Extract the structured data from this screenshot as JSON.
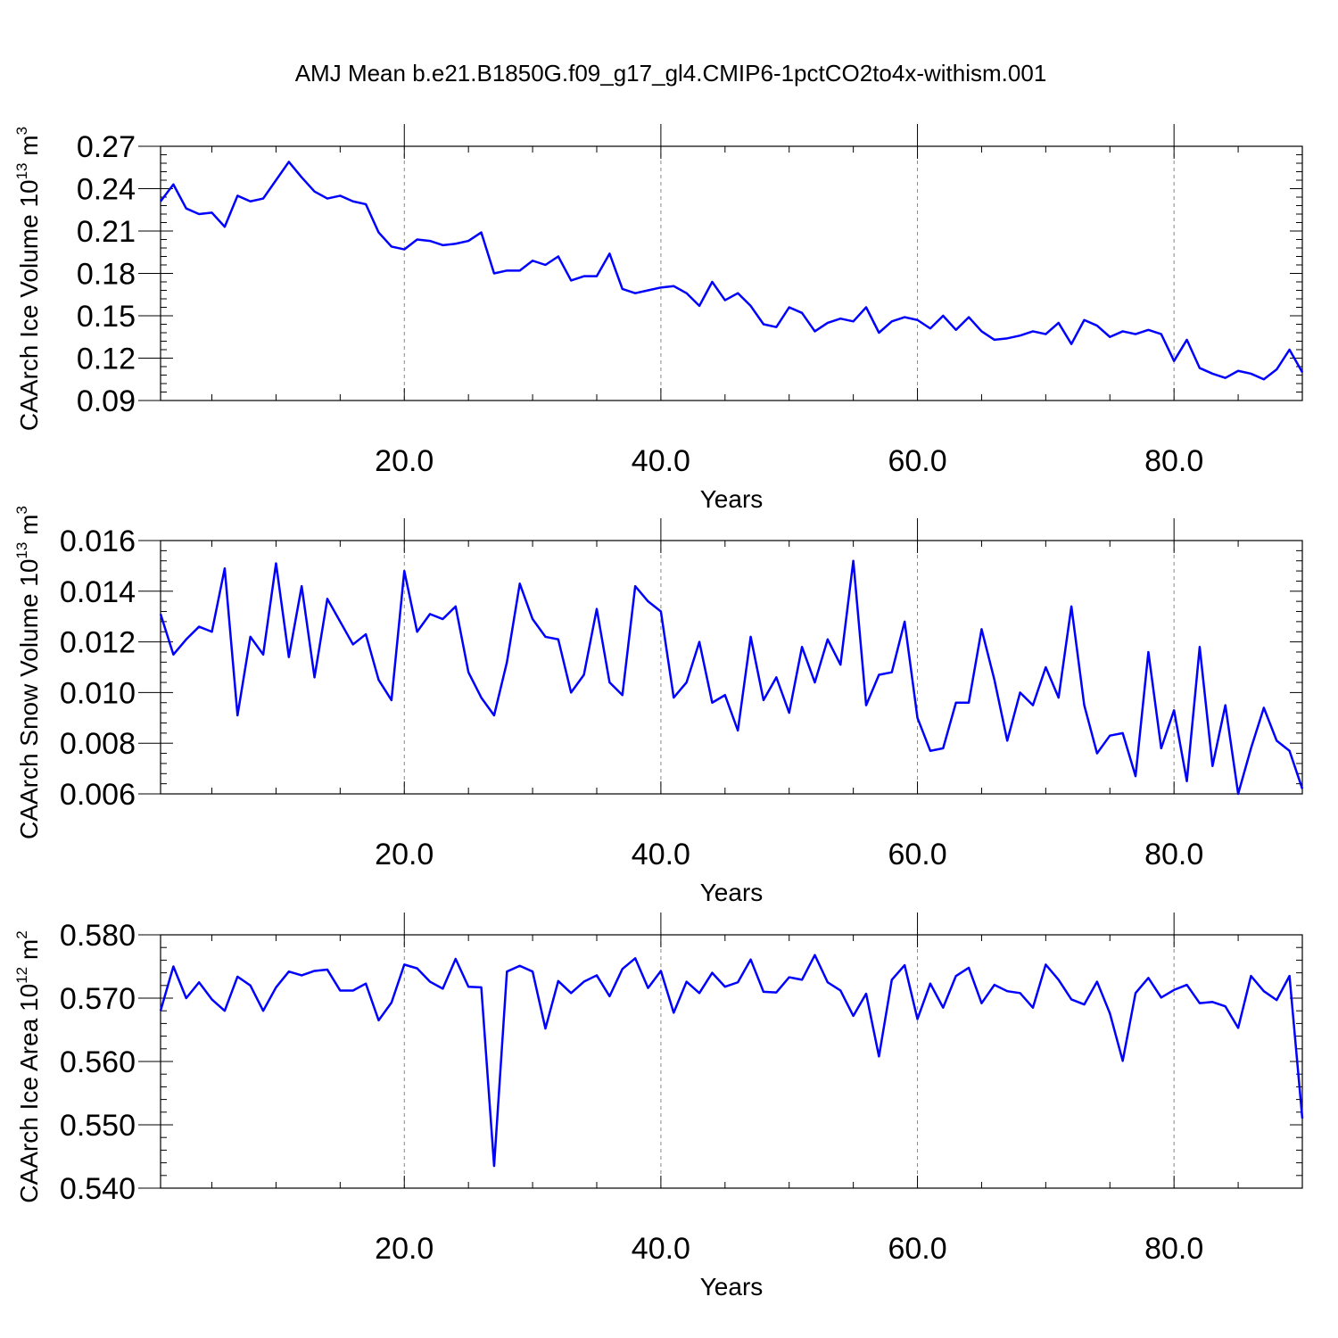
{
  "title": "AMJ Mean b.e21.B1850G.f09_g17_gl4.CMIP6-1pctCO2to4x-withism.001",
  "line_color": "#0000ff",
  "chart_data": [
    {
      "type": "line",
      "ylabel": "CAArch Ice Volume 10",
      "ylabel_exp": "13",
      "ylabel_unit": "m",
      "ylabel_unit_exp": "3",
      "xlabel": "Years",
      "xlim": [
        1,
        90
      ],
      "ylim": [
        0.09,
        0.27
      ],
      "xticks": [
        "20.0",
        "40.0",
        "60.0",
        "80.0"
      ],
      "yticks": [
        "0.09",
        "0.12",
        "0.15",
        "0.18",
        "0.21",
        "0.24",
        "0.27"
      ],
      "grid": "x-dashed",
      "series": [
        {
          "values": [
            0.231,
            0.243,
            0.226,
            0.222,
            0.223,
            0.213,
            0.235,
            0.231,
            0.233,
            0.246,
            0.259,
            0.248,
            0.238,
            0.233,
            0.235,
            0.231,
            0.229,
            0.209,
            0.199,
            0.197,
            0.204,
            0.203,
            0.2,
            0.201,
            0.203,
            0.209,
            0.18,
            0.182,
            0.182,
            0.189,
            0.186,
            0.192,
            0.175,
            0.178,
            0.178,
            0.194,
            0.169,
            0.166,
            0.168,
            0.17,
            0.171,
            0.166,
            0.157,
            0.174,
            0.161,
            0.166,
            0.157,
            0.144,
            0.142,
            0.156,
            0.152,
            0.139,
            0.145,
            0.148,
            0.146,
            0.156,
            0.138,
            0.146,
            0.149,
            0.147,
            0.141,
            0.15,
            0.14,
            0.149,
            0.139,
            0.133,
            0.134,
            0.136,
            0.139,
            0.137,
            0.145,
            0.13,
            0.147,
            0.143,
            0.135,
            0.139,
            0.137,
            0.14,
            0.137,
            0.118,
            0.133,
            0.113,
            0.109,
            0.106,
            0.111,
            0.109,
            0.105,
            0.112,
            0.126,
            0.11
          ]
        }
      ]
    },
    {
      "type": "line",
      "ylabel": "CAArch Snow Volume 10",
      "ylabel_exp": "13",
      "ylabel_unit": "m",
      "ylabel_unit_exp": "3",
      "xlabel": "Years",
      "xlim": [
        1,
        90
      ],
      "ylim": [
        0.006,
        0.016
      ],
      "xticks": [
        "20.0",
        "40.0",
        "60.0",
        "80.0"
      ],
      "yticks": [
        "0.006",
        "0.008",
        "0.010",
        "0.012",
        "0.014",
        "0.016"
      ],
      "grid": "x-dashed",
      "series": [
        {
          "values": [
            0.0131,
            0.0115,
            0.0121,
            0.0126,
            0.0124,
            0.0149,
            0.0091,
            0.0122,
            0.0115,
            0.0151,
            0.0114,
            0.0142,
            0.0106,
            0.0137,
            0.0128,
            0.0119,
            0.0123,
            0.0105,
            0.0097,
            0.0148,
            0.0124,
            0.0131,
            0.0129,
            0.0134,
            0.0108,
            0.0098,
            0.0091,
            0.0112,
            0.0143,
            0.0129,
            0.0122,
            0.0121,
            0.01,
            0.0107,
            0.0133,
            0.0104,
            0.0099,
            0.0142,
            0.0136,
            0.0132,
            0.0098,
            0.0104,
            0.012,
            0.0096,
            0.0099,
            0.0085,
            0.0122,
            0.0097,
            0.0106,
            0.0092,
            0.0118,
            0.0104,
            0.0121,
            0.0111,
            0.0152,
            0.0095,
            0.0107,
            0.0108,
            0.0128,
            0.009,
            0.0077,
            0.0078,
            0.0096,
            0.0096,
            0.0125,
            0.0105,
            0.0081,
            0.01,
            0.0095,
            0.011,
            0.0098,
            0.0134,
            0.0095,
            0.0076,
            0.0083,
            0.0084,
            0.0067,
            0.0116,
            0.0078,
            0.0093,
            0.0065,
            0.0118,
            0.0071,
            0.0095,
            0.006,
            0.0078,
            0.0094,
            0.0081,
            0.0077,
            0.0062
          ]
        }
      ]
    },
    {
      "type": "line",
      "ylabel": "CAArch Ice Area 10",
      "ylabel_exp": "12",
      "ylabel_unit": "m",
      "ylabel_unit_exp": "2",
      "xlabel": "Years",
      "xlim": [
        1,
        90
      ],
      "ylim": [
        0.54,
        0.58
      ],
      "xticks": [
        "20.0",
        "40.0",
        "60.0",
        "80.0"
      ],
      "yticks": [
        "0.540",
        "0.550",
        "0.560",
        "0.570",
        "0.580"
      ],
      "grid": "x-dashed",
      "series": [
        {
          "values": [
            0.568,
            0.575,
            0.57,
            0.5725,
            0.5698,
            0.568,
            0.5734,
            0.572,
            0.568,
            0.5717,
            0.5742,
            0.5736,
            0.5743,
            0.5745,
            0.5712,
            0.5712,
            0.5723,
            0.5665,
            0.5693,
            0.5753,
            0.5747,
            0.5726,
            0.5715,
            0.5762,
            0.5718,
            0.5717,
            0.5435,
            0.5742,
            0.5751,
            0.5742,
            0.5652,
            0.5727,
            0.5708,
            0.5726,
            0.5736,
            0.5703,
            0.5746,
            0.5763,
            0.5716,
            0.5743,
            0.5677,
            0.5726,
            0.5708,
            0.574,
            0.5718,
            0.5725,
            0.5761,
            0.571,
            0.5709,
            0.5733,
            0.5729,
            0.5768,
            0.5725,
            0.5712,
            0.5672,
            0.5707,
            0.5608,
            0.5729,
            0.5752,
            0.5667,
            0.5723,
            0.5685,
            0.5735,
            0.5748,
            0.5692,
            0.5721,
            0.5711,
            0.5708,
            0.5685,
            0.5753,
            0.5729,
            0.5698,
            0.569,
            0.5726,
            0.5676,
            0.5601,
            0.5708,
            0.5732,
            0.5701,
            0.5713,
            0.5721,
            0.5692,
            0.5694,
            0.5687,
            0.5653,
            0.5735,
            0.5711,
            0.5697,
            0.5735,
            0.551
          ]
        }
      ]
    }
  ]
}
